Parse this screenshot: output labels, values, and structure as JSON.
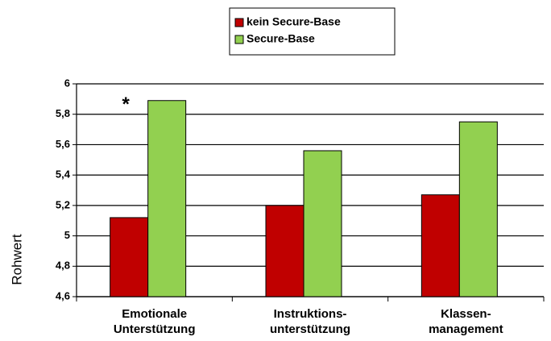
{
  "chart_data": {
    "type": "bar",
    "categories": [
      [
        "Emotionale",
        "Unterstützung"
      ],
      [
        "Instruktions-",
        "unterstützung"
      ],
      [
        "Klassen-",
        "management"
      ]
    ],
    "series": [
      {
        "name": "kein Secure-Base",
        "color": "#c00000",
        "values": [
          5.12,
          5.2,
          5.27
        ]
      },
      {
        "name": "Secure-Base",
        "color": "#92d050",
        "values": [
          5.89,
          5.56,
          5.75
        ]
      }
    ],
    "y_label": "Rohwert",
    "annotation": "*",
    "ylim": [
      4.6,
      6
    ],
    "yticks": [
      {
        "value": 4.6,
        "label": "4,6"
      },
      {
        "value": 4.8,
        "label": "4,8"
      },
      5,
      {
        "value": 5.2,
        "label": "5,2"
      },
      {
        "value": 5.4,
        "label": "5,4"
      },
      {
        "value": 5.6,
        "label": "5,6"
      },
      {
        "value": 5.8,
        "label": "5,8"
      },
      6
    ],
    "grid": true
  }
}
